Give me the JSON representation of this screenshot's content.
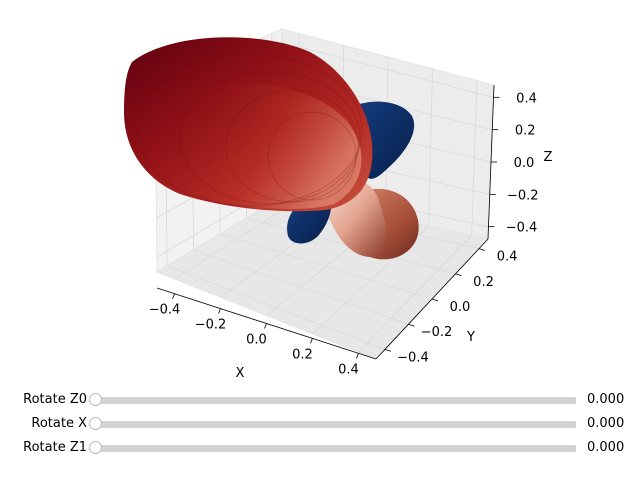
{
  "axes": {
    "x": {
      "label": "X",
      "ticks": [
        "−0.4",
        "−0.2",
        "0.0",
        "0.2",
        "0.4"
      ]
    },
    "y": {
      "label": "Y",
      "ticks": [
        "−0.4",
        "−0.2",
        "0.0",
        "0.2",
        "0.4"
      ]
    },
    "z": {
      "label": "Z",
      "ticks": [
        "−0.4",
        "−0.2",
        "0.0",
        "0.2",
        "0.4"
      ]
    }
  },
  "surface": {
    "positive_lobe_color": "#8b0000",
    "negative_lobe_color": "#0b2f66",
    "colormap": "RdBu"
  },
  "sliders": [
    {
      "label": "Rotate Z0",
      "value": 0.0,
      "value_text": "0.000"
    },
    {
      "label": "Rotate X",
      "value": 0.0,
      "value_text": "0.000"
    },
    {
      "label": "Rotate Z1",
      "value": 0.0,
      "value_text": "0.000"
    }
  ]
}
